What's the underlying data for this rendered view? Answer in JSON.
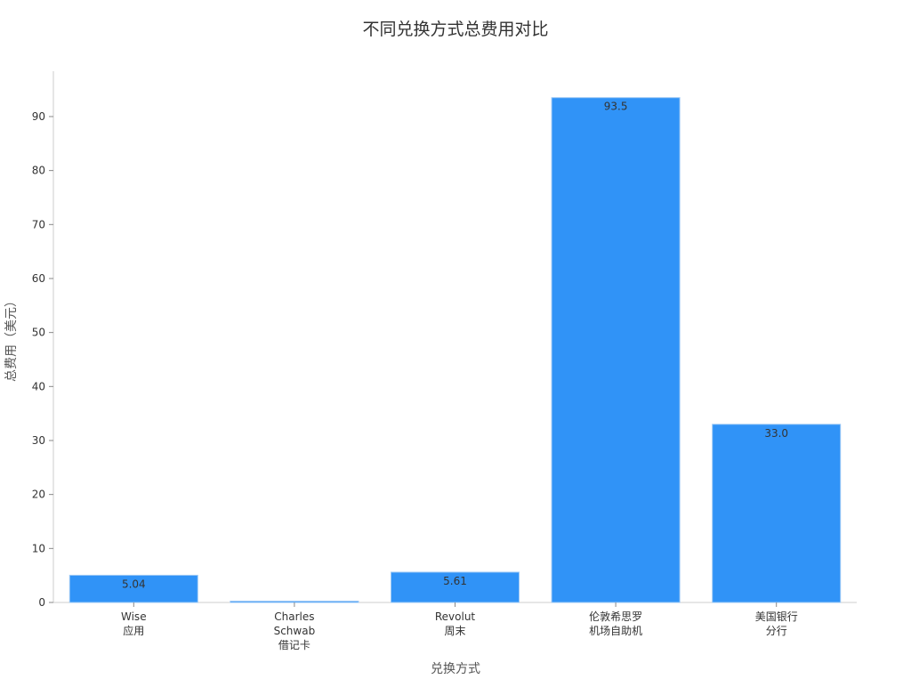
{
  "chart_data": {
    "type": "bar",
    "title": "不同兑换方式总费用对比",
    "xlabel": "兑换方式",
    "ylabel": "总费用（美元）",
    "categories": [
      [
        "Wise",
        "应用"
      ],
      [
        "Charles",
        "Schwab",
        "借记卡"
      ],
      [
        "Revolut",
        "周末"
      ],
      [
        "伦敦希思罗",
        "机场自助机"
      ],
      [
        "美国银行",
        "分行"
      ]
    ],
    "values": [
      5.04,
      0,
      5.61,
      93.5,
      33.0
    ],
    "data_labels": [
      "5.04",
      "",
      "5.61",
      "93.5",
      "33.0"
    ],
    "yticks": [
      0,
      10,
      20,
      30,
      40,
      50,
      60,
      70,
      80,
      90
    ],
    "ylim": [
      0,
      98.4
    ],
    "grid": false,
    "bar_color": "#3093f7"
  }
}
